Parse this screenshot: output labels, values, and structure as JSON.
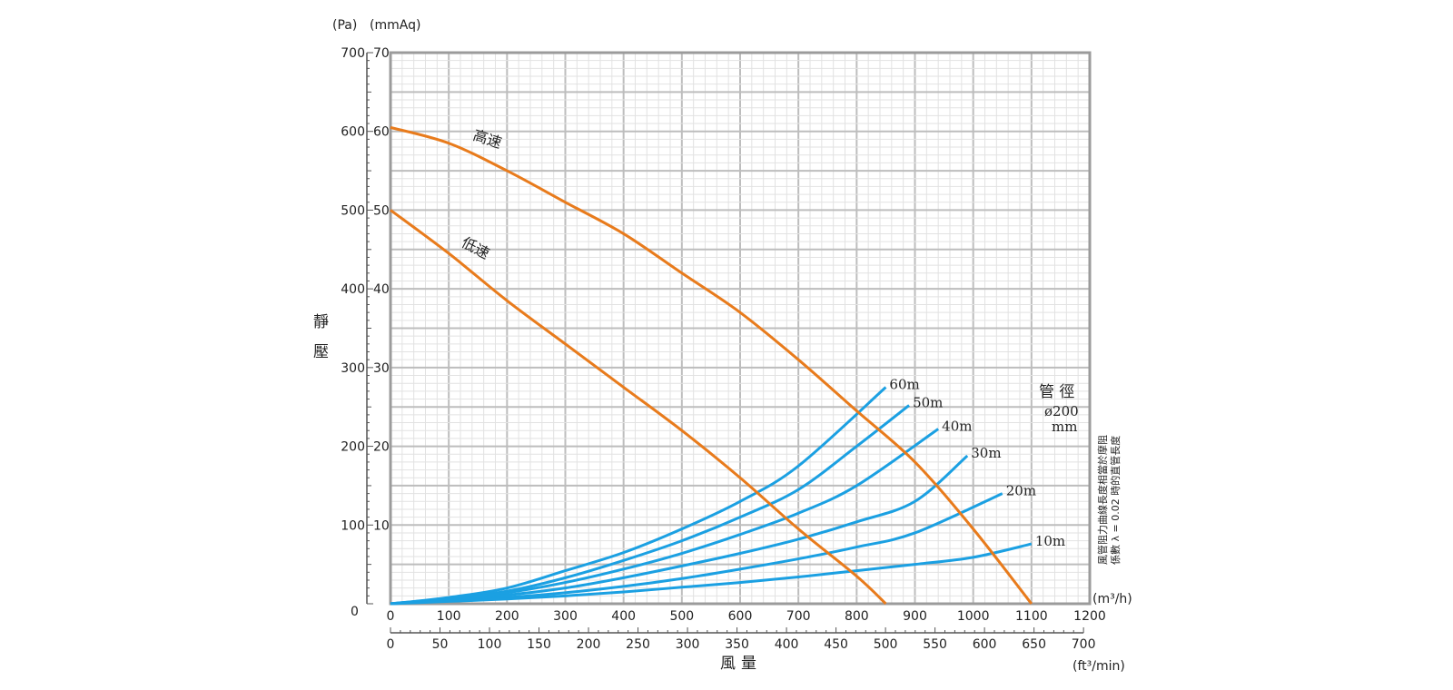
{
  "chart_data": {
    "type": "line",
    "title": "",
    "ylabel": "靜壓",
    "xlabel": "風量",
    "y_units": {
      "pa": "(Pa)",
      "mmaq": "(mmAq)"
    },
    "x_units": {
      "m3h": "(m³/h)",
      "cfm": "(ft³/min)"
    },
    "x_range_m3h": [
      0,
      1200
    ],
    "y_range_pa": [
      0,
      700
    ],
    "x_ticks_m3h": [
      "0",
      "100",
      "200",
      "300",
      "400",
      "500",
      "600",
      "700",
      "800",
      "900",
      "1000",
      "1100",
      "1200"
    ],
    "x_ticks_cfm": [
      "0",
      "50",
      "100",
      "150",
      "200",
      "250",
      "300",
      "350",
      "400",
      "450",
      "500",
      "550",
      "600",
      "650",
      "700"
    ],
    "y_ticks_pa": [
      "0",
      "100",
      "200",
      "300",
      "400",
      "500",
      "600",
      "700"
    ],
    "y_ticks_mmaq": [
      "10",
      "20",
      "30",
      "40",
      "50",
      "60",
      "70"
    ],
    "y_zero_label": "0",
    "fan_curves": [
      {
        "name": "高速",
        "color": "#E87B1C",
        "x": [
          0,
          100,
          200,
          300,
          400,
          500,
          600,
          700,
          800,
          900,
          1000,
          1100
        ],
        "y": [
          605,
          585,
          550,
          510,
          470,
          420,
          370,
          310,
          245,
          180,
          95,
          0
        ]
      },
      {
        "name": "低速",
        "color": "#E87B1C",
        "x": [
          0,
          100,
          200,
          300,
          400,
          500,
          600,
          700,
          800,
          850
        ],
        "y": [
          500,
          445,
          385,
          330,
          275,
          220,
          160,
          95,
          35,
          0
        ]
      }
    ],
    "duct_curves": [
      {
        "name": "60m",
        "color": "#1BA0E2",
        "x": [
          0,
          100,
          200,
          300,
          400,
          500,
          600,
          700,
          850
        ],
        "y": [
          0,
          8,
          20,
          42,
          65,
          95,
          130,
          175,
          275
        ]
      },
      {
        "name": "50m",
        "color": "#1BA0E2",
        "x": [
          0,
          100,
          200,
          300,
          400,
          500,
          600,
          700,
          800,
          890
        ],
        "y": [
          0,
          7,
          16,
          33,
          55,
          80,
          110,
          145,
          200,
          252
        ]
      },
      {
        "name": "40m",
        "color": "#1BA0E2",
        "x": [
          0,
          100,
          200,
          300,
          400,
          500,
          600,
          700,
          800,
          940
        ],
        "y": [
          0,
          6,
          14,
          27,
          44,
          64,
          88,
          115,
          150,
          222
        ]
      },
      {
        "name": "30m",
        "color": "#1BA0E2",
        "x": [
          0,
          100,
          200,
          300,
          400,
          500,
          600,
          700,
          800,
          900,
          990
        ],
        "y": [
          0,
          5,
          11,
          20,
          33,
          48,
          64,
          82,
          104,
          130,
          188
        ]
      },
      {
        "name": "20m",
        "color": "#1BA0E2",
        "x": [
          0,
          100,
          200,
          300,
          400,
          500,
          600,
          700,
          800,
          900,
          1050
        ],
        "y": [
          0,
          4,
          8,
          14,
          22,
          32,
          44,
          57,
          72,
          90,
          140
        ]
      },
      {
        "name": "10m",
        "color": "#1BA0E2",
        "x": [
          0,
          100,
          200,
          300,
          400,
          500,
          600,
          700,
          800,
          900,
          1000,
          1100
        ],
        "y": [
          0,
          3,
          6,
          10,
          15,
          21,
          27,
          34,
          42,
          50,
          59,
          76
        ]
      }
    ],
    "annotations": {
      "pipe_title": "管 徑",
      "pipe_size": "ø200",
      "pipe_unit": "mm",
      "side_note_line1": "風管阻力曲線長度相當於摩阻",
      "side_note_line2": "係數 λ = 0.02 時的直管長度"
    }
  }
}
